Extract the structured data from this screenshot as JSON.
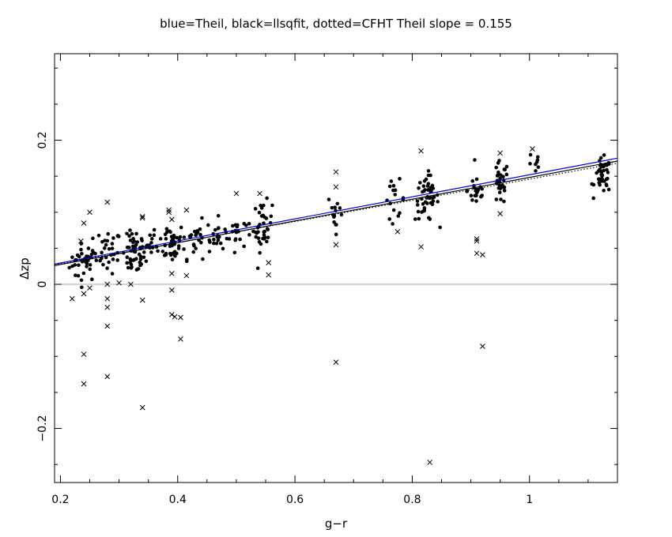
{
  "chart_data": {
    "type": "scatter",
    "title": "blue=Theil, black=llsqfit, dotted=CFHT   Theil slope =  0.155",
    "xlabel": "g−r",
    "ylabel": "Δzp",
    "xlim": [
      0.19,
      1.15
    ],
    "ylim": [
      -0.275,
      0.32
    ],
    "xticks": [
      {
        "value": 0.2,
        "label": "0.2"
      },
      {
        "value": 0.4,
        "label": "0.4"
      },
      {
        "value": 0.6,
        "label": "0.6"
      },
      {
        "value": 0.8,
        "label": "0.8"
      },
      {
        "value": 1.0,
        "label": "1"
      }
    ],
    "yticks": [
      {
        "value": -0.2,
        "label": "−0.2"
      },
      {
        "value": 0.0,
        "label": "0"
      },
      {
        "value": 0.2,
        "label": "0.2"
      }
    ],
    "grid": false,
    "zero_line": {
      "y": 0,
      "color": "#aaaaaa"
    },
    "fits": [
      {
        "name": "Theil",
        "color": "#0000cc",
        "style": "solid",
        "slope": 0.155,
        "x": [
          0.19,
          1.15
        ],
        "y": [
          0.028,
          0.175
        ]
      },
      {
        "name": "llsqfit",
        "color": "#000000",
        "style": "solid",
        "x": [
          0.19,
          1.15
        ],
        "y": [
          0.026,
          0.171
        ]
      },
      {
        "name": "CFHT",
        "color": "#000000",
        "style": "dotted",
        "x": [
          0.19,
          1.15
        ],
        "y": [
          0.027,
          0.168
        ]
      }
    ],
    "series": [
      {
        "marker": "dot",
        "clusters": [
          {
            "x": 0.24,
            "y": 0.03,
            "n": 34,
            "sx": 0.012,
            "sy": 0.013
          },
          {
            "x": 0.28,
            "y": 0.045,
            "n": 32,
            "sx": 0.012,
            "sy": 0.015
          },
          {
            "x": 0.325,
            "y": 0.04,
            "n": 40,
            "sx": 0.01,
            "sy": 0.014
          },
          {
            "x": 0.345,
            "y": 0.055,
            "n": 22,
            "sx": 0.01,
            "sy": 0.014
          },
          {
            "x": 0.39,
            "y": 0.058,
            "n": 40,
            "sx": 0.011,
            "sy": 0.014
          },
          {
            "x": 0.43,
            "y": 0.062,
            "n": 28,
            "sx": 0.014,
            "sy": 0.013
          },
          {
            "x": 0.47,
            "y": 0.068,
            "n": 20,
            "sx": 0.01,
            "sy": 0.012
          },
          {
            "x": 0.5,
            "y": 0.072,
            "n": 16,
            "sx": 0.008,
            "sy": 0.012
          },
          {
            "x": 0.545,
            "y": 0.08,
            "n": 38,
            "sx": 0.008,
            "sy": 0.017
          },
          {
            "x": 0.67,
            "y": 0.1,
            "n": 14,
            "sx": 0.007,
            "sy": 0.014
          },
          {
            "x": 0.77,
            "y": 0.118,
            "n": 16,
            "sx": 0.009,
            "sy": 0.013
          },
          {
            "x": 0.825,
            "y": 0.12,
            "n": 50,
            "sx": 0.01,
            "sy": 0.016
          },
          {
            "x": 0.91,
            "y": 0.13,
            "n": 22,
            "sx": 0.008,
            "sy": 0.013
          },
          {
            "x": 0.95,
            "y": 0.14,
            "n": 30,
            "sx": 0.007,
            "sy": 0.015
          },
          {
            "x": 1.01,
            "y": 0.165,
            "n": 8,
            "sx": 0.006,
            "sy": 0.01
          },
          {
            "x": 1.125,
            "y": 0.15,
            "n": 40,
            "sx": 0.007,
            "sy": 0.012
          }
        ]
      },
      {
        "marker": "cross",
        "points": [
          [
            0.22,
            -0.02
          ],
          [
            0.235,
            0.06
          ],
          [
            0.24,
            0.085
          ],
          [
            0.24,
            -0.013
          ],
          [
            0.24,
            -0.097
          ],
          [
            0.24,
            -0.138
          ],
          [
            0.25,
            0.1
          ],
          [
            0.25,
            -0.005
          ],
          [
            0.28,
            0.114
          ],
          [
            0.28,
            -0.02
          ],
          [
            0.28,
            -0.032
          ],
          [
            0.28,
            -0.058
          ],
          [
            0.28,
            -0.128
          ],
          [
            0.28,
            0.0
          ],
          [
            0.3,
            0.002
          ],
          [
            0.32,
            0.0
          ],
          [
            0.34,
            0.092
          ],
          [
            0.34,
            0.094
          ],
          [
            0.34,
            -0.022
          ],
          [
            0.34,
            -0.171
          ],
          [
            0.385,
            0.1
          ],
          [
            0.385,
            0.103
          ],
          [
            0.39,
            0.09
          ],
          [
            0.39,
            0.015
          ],
          [
            0.39,
            -0.008
          ],
          [
            0.39,
            -0.042
          ],
          [
            0.395,
            -0.045
          ],
          [
            0.405,
            -0.046
          ],
          [
            0.405,
            -0.076
          ],
          [
            0.415,
            0.103
          ],
          [
            0.415,
            0.012
          ],
          [
            0.5,
            0.126
          ],
          [
            0.54,
            0.126
          ],
          [
            0.555,
            0.03
          ],
          [
            0.555,
            0.013
          ],
          [
            0.67,
            0.156
          ],
          [
            0.67,
            0.135
          ],
          [
            0.67,
            0.055
          ],
          [
            0.67,
            -0.108
          ],
          [
            0.775,
            0.073
          ],
          [
            0.815,
            0.185
          ],
          [
            0.815,
            0.052
          ],
          [
            0.83,
            -0.247
          ],
          [
            0.91,
            0.063
          ],
          [
            0.91,
            0.06
          ],
          [
            0.91,
            0.043
          ],
          [
            0.92,
            0.041
          ],
          [
            0.92,
            -0.086
          ],
          [
            0.95,
            0.182
          ],
          [
            0.95,
            0.098
          ],
          [
            1.005,
            0.188
          ]
        ]
      }
    ]
  }
}
